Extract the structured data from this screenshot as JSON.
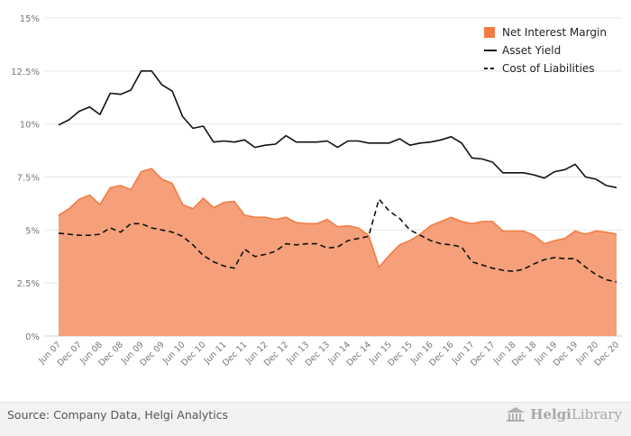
{
  "chart_data": {
    "type": "area",
    "y_format": "percent",
    "ylim": [
      0,
      15
    ],
    "yticks": [
      0,
      2.5,
      5,
      7.5,
      10,
      12.5,
      15
    ],
    "ytick_labels": [
      "0%",
      "2.5%",
      "5%",
      "7.5%",
      "10%",
      "12.5%",
      "15%"
    ],
    "grid": "horizontal",
    "legend_position": "top-right",
    "x": [
      "Jun 07",
      "Sep 07",
      "Dec 07",
      "Mar 08",
      "Jun 08",
      "Sep 08",
      "Dec 08",
      "Mar 09",
      "Jun 09",
      "Sep 09",
      "Dec 09",
      "Mar 10",
      "Jun 10",
      "Sep 10",
      "Dec 10",
      "Mar 11",
      "Jun 11",
      "Sep 11",
      "Dec 11",
      "Mar 12",
      "Jun 12",
      "Sep 12",
      "Dec 12",
      "Mar 13",
      "Jun 13",
      "Sep 13",
      "Dec 13",
      "Mar 14",
      "Jun 14",
      "Sep 14",
      "Dec 14",
      "Mar 15",
      "Jun 15",
      "Sep 15",
      "Dec 15",
      "Mar 16",
      "Jun 16",
      "Sep 16",
      "Dec 16",
      "Mar 17",
      "Jun 17",
      "Sep 17",
      "Dec 17",
      "Mar 18",
      "Jun 18",
      "Sep 18",
      "Dec 18",
      "Mar 19",
      "Jun 19",
      "Sep 19",
      "Dec 19",
      "Mar 20",
      "Jun 20",
      "Sep 20",
      "Dec 20"
    ],
    "x_labels": [
      "Jun 07",
      "Dec 07",
      "Jun 08",
      "Dec 08",
      "Jun 09",
      "Dec 09",
      "Jun 10",
      "Dec 10",
      "Jun 11",
      "Dec 11",
      "Jun 12",
      "Dec 12",
      "Jun 13",
      "Dec 13",
      "Jun 14",
      "Dec 14",
      "Jun 15",
      "Dec 15",
      "Jun 16",
      "Dec 16",
      "Jun 17",
      "Dec 17",
      "Jun 18",
      "Dec 18",
      "Jun 19",
      "Dec 19",
      "Jun 20",
      "Dec 20"
    ],
    "series": [
      {
        "name": "Net Interest Margin",
        "kind": "area",
        "color": "#f47c42",
        "fill": "#f5a07a",
        "values": [
          5.7,
          6.0,
          6.45,
          6.65,
          6.2,
          7.0,
          7.1,
          6.9,
          7.75,
          7.9,
          7.4,
          7.2,
          6.2,
          6.0,
          6.5,
          6.05,
          6.3,
          6.35,
          5.7,
          5.6,
          5.6,
          5.5,
          5.6,
          5.35,
          5.3,
          5.3,
          5.5,
          5.15,
          5.2,
          5.1,
          4.75,
          3.25,
          3.8,
          4.3,
          4.5,
          4.8,
          5.2,
          5.4,
          5.6,
          5.4,
          5.3,
          5.4,
          5.4,
          4.95,
          4.95,
          4.95,
          4.75,
          4.35,
          4.5,
          4.6,
          4.95,
          4.8,
          4.95,
          4.9,
          4.8
        ]
      },
      {
        "name": "Asset Yield",
        "kind": "line",
        "color": "#111111",
        "values": [
          9.95,
          10.2,
          10.6,
          10.8,
          10.45,
          11.45,
          11.4,
          11.6,
          12.5,
          12.5,
          11.85,
          11.55,
          10.35,
          9.8,
          9.9,
          9.15,
          9.2,
          9.15,
          9.25,
          8.9,
          9.0,
          9.05,
          9.45,
          9.15,
          9.15,
          9.15,
          9.2,
          8.9,
          9.2,
          9.2,
          9.1,
          9.1,
          9.1,
          9.3,
          9.0,
          9.1,
          9.15,
          9.25,
          9.4,
          9.1,
          8.4,
          8.35,
          8.2,
          7.7,
          7.7,
          7.7,
          7.6,
          7.45,
          7.75,
          7.85,
          8.1,
          7.5,
          7.4,
          7.1,
          7.0
        ]
      },
      {
        "name": "Cost of Liabilities",
        "kind": "dashed",
        "color": "#111111",
        "values": [
          4.85,
          4.8,
          4.75,
          4.75,
          4.8,
          5.1,
          4.9,
          5.3,
          5.3,
          5.1,
          5.0,
          4.9,
          4.7,
          4.3,
          3.8,
          3.5,
          3.3,
          3.2,
          4.1,
          3.75,
          3.85,
          4.0,
          4.35,
          4.3,
          4.35,
          4.35,
          4.15,
          4.2,
          4.5,
          4.6,
          4.7,
          6.45,
          5.9,
          5.55,
          5.0,
          4.75,
          4.5,
          4.35,
          4.3,
          4.2,
          3.5,
          3.35,
          3.2,
          3.1,
          3.05,
          3.15,
          3.4,
          3.6,
          3.7,
          3.65,
          3.65,
          3.25,
          2.9,
          2.65,
          2.55
        ]
      }
    ]
  },
  "footer": {
    "source": "Source: Company Data, Helgi Analytics",
    "brand_prefix": "Helgi",
    "brand_suffix": "Library"
  }
}
